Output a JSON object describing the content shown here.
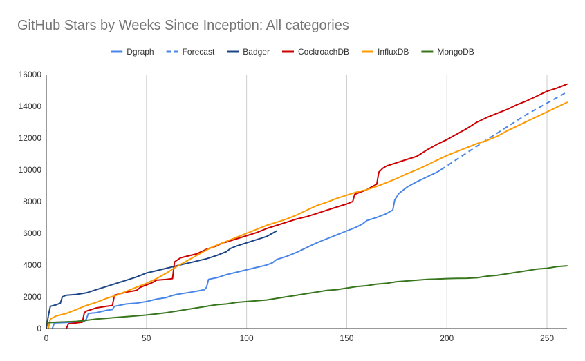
{
  "chart_data": {
    "type": "line",
    "title": "GitHub Stars by Weeks Since Inception: All categories",
    "xlabel": "",
    "ylabel": "",
    "xlim": [
      0,
      260
    ],
    "ylim": [
      0,
      16000
    ],
    "x_ticks": [
      0,
      50,
      100,
      150,
      200,
      250
    ],
    "y_ticks": [
      0,
      2000,
      4000,
      6000,
      8000,
      10000,
      12000,
      14000,
      16000
    ],
    "grid": "vertical",
    "legend_position": "top",
    "series": [
      {
        "name": "Dgraph",
        "color": "#4a86e8",
        "dashed": false,
        "points": [
          [
            3,
            0
          ],
          [
            4,
            350
          ],
          [
            10,
            380
          ],
          [
            15,
            420
          ],
          [
            19,
            450
          ],
          [
            20,
            600
          ],
          [
            21,
            950
          ],
          [
            25,
            1000
          ],
          [
            30,
            1150
          ],
          [
            33,
            1200
          ],
          [
            34,
            1400
          ],
          [
            40,
            1550
          ],
          [
            45,
            1600
          ],
          [
            50,
            1700
          ],
          [
            55,
            1850
          ],
          [
            60,
            1950
          ],
          [
            62,
            2050
          ],
          [
            65,
            2150
          ],
          [
            70,
            2250
          ],
          [
            75,
            2350
          ],
          [
            79,
            2450
          ],
          [
            80,
            2600
          ],
          [
            81,
            3100
          ],
          [
            85,
            3200
          ],
          [
            90,
            3400
          ],
          [
            95,
            3550
          ],
          [
            100,
            3700
          ],
          [
            105,
            3850
          ],
          [
            110,
            4000
          ],
          [
            113,
            4150
          ],
          [
            115,
            4350
          ],
          [
            120,
            4550
          ],
          [
            125,
            4800
          ],
          [
            130,
            5100
          ],
          [
            135,
            5400
          ],
          [
            140,
            5650
          ],
          [
            145,
            5900
          ],
          [
            150,
            6150
          ],
          [
            155,
            6400
          ],
          [
            158,
            6600
          ],
          [
            160,
            6800
          ],
          [
            165,
            7000
          ],
          [
            170,
            7250
          ],
          [
            172,
            7400
          ],
          [
            173,
            7450
          ],
          [
            174,
            8100
          ],
          [
            176,
            8500
          ],
          [
            180,
            8900
          ],
          [
            185,
            9250
          ],
          [
            190,
            9550
          ],
          [
            195,
            9850
          ],
          [
            197,
            10000
          ]
        ]
      },
      {
        "name": "Forecast",
        "color": "#4a86e8",
        "dashed": true,
        "points": [
          [
            197,
            10000
          ],
          [
            220,
            11900
          ],
          [
            240,
            13500
          ],
          [
            260,
            14900
          ]
        ]
      },
      {
        "name": "Badger",
        "color": "#1c4587",
        "dashed": false,
        "points": [
          [
            0,
            0
          ],
          [
            1,
            800
          ],
          [
            2,
            1400
          ],
          [
            5,
            1500
          ],
          [
            7,
            1600
          ],
          [
            8,
            2000
          ],
          [
            10,
            2100
          ],
          [
            15,
            2150
          ],
          [
            20,
            2250
          ],
          [
            25,
            2450
          ],
          [
            30,
            2650
          ],
          [
            35,
            2850
          ],
          [
            40,
            3050
          ],
          [
            45,
            3250
          ],
          [
            48,
            3400
          ],
          [
            50,
            3500
          ],
          [
            55,
            3650
          ],
          [
            60,
            3800
          ],
          [
            65,
            3950
          ],
          [
            70,
            4100
          ],
          [
            75,
            4250
          ],
          [
            80,
            4400
          ],
          [
            85,
            4600
          ],
          [
            90,
            4850
          ],
          [
            92,
            5050
          ],
          [
            95,
            5200
          ],
          [
            100,
            5400
          ],
          [
            105,
            5600
          ],
          [
            110,
            5800
          ],
          [
            115,
            6150
          ]
        ]
      },
      {
        "name": "CockroachDB",
        "color": "#cc0000",
        "dashed": false,
        "points": [
          [
            10,
            0
          ],
          [
            11,
            300
          ],
          [
            15,
            350
          ],
          [
            18,
            400
          ],
          [
            19,
            1000
          ],
          [
            20,
            1100
          ],
          [
            25,
            1300
          ],
          [
            30,
            1400
          ],
          [
            33,
            1450
          ],
          [
            34,
            2100
          ],
          [
            40,
            2300
          ],
          [
            45,
            2400
          ],
          [
            47,
            2600
          ],
          [
            50,
            2750
          ],
          [
            53,
            2900
          ],
          [
            55,
            3050
          ],
          [
            60,
            3100
          ],
          [
            63,
            3150
          ],
          [
            64,
            4200
          ],
          [
            67,
            4450
          ],
          [
            70,
            4550
          ],
          [
            75,
            4700
          ],
          [
            80,
            5000
          ],
          [
            85,
            5200
          ],
          [
            88,
            5400
          ],
          [
            90,
            5450
          ],
          [
            95,
            5650
          ],
          [
            100,
            5850
          ],
          [
            105,
            6050
          ],
          [
            108,
            6200
          ],
          [
            110,
            6300
          ],
          [
            115,
            6500
          ],
          [
            120,
            6700
          ],
          [
            125,
            6900
          ],
          [
            130,
            7050
          ],
          [
            135,
            7250
          ],
          [
            140,
            7450
          ],
          [
            145,
            7650
          ],
          [
            150,
            7850
          ],
          [
            153,
            8000
          ],
          [
            154,
            8450
          ],
          [
            160,
            8750
          ],
          [
            165,
            9100
          ],
          [
            166,
            9850
          ],
          [
            168,
            10100
          ],
          [
            170,
            10250
          ],
          [
            175,
            10450
          ],
          [
            180,
            10650
          ],
          [
            185,
            10850
          ],
          [
            190,
            11250
          ],
          [
            195,
            11600
          ],
          [
            200,
            11900
          ],
          [
            205,
            12250
          ],
          [
            210,
            12600
          ],
          [
            215,
            13000
          ],
          [
            220,
            13300
          ],
          [
            225,
            13550
          ],
          [
            230,
            13800
          ],
          [
            235,
            14100
          ],
          [
            240,
            14350
          ],
          [
            245,
            14650
          ],
          [
            250,
            14950
          ],
          [
            255,
            15150
          ],
          [
            260,
            15400
          ]
        ]
      },
      {
        "name": "InfluxDB",
        "color": "#ff9900",
        "dashed": false,
        "points": [
          [
            1,
            0
          ],
          [
            2,
            600
          ],
          [
            5,
            800
          ],
          [
            10,
            950
          ],
          [
            15,
            1200
          ],
          [
            20,
            1450
          ],
          [
            25,
            1650
          ],
          [
            30,
            1900
          ],
          [
            35,
            2100
          ],
          [
            40,
            2350
          ],
          [
            45,
            2600
          ],
          [
            50,
            2850
          ],
          [
            55,
            3150
          ],
          [
            60,
            3500
          ],
          [
            65,
            3900
          ],
          [
            70,
            4250
          ],
          [
            75,
            4600
          ],
          [
            80,
            4950
          ],
          [
            85,
            5250
          ],
          [
            90,
            5500
          ],
          [
            95,
            5750
          ],
          [
            100,
            6000
          ],
          [
            105,
            6250
          ],
          [
            110,
            6500
          ],
          [
            115,
            6700
          ],
          [
            120,
            6900
          ],
          [
            125,
            7150
          ],
          [
            130,
            7450
          ],
          [
            135,
            7750
          ],
          [
            140,
            7950
          ],
          [
            145,
            8200
          ],
          [
            150,
            8400
          ],
          [
            155,
            8600
          ],
          [
            160,
            8750
          ],
          [
            165,
            8950
          ],
          [
            170,
            9200
          ],
          [
            175,
            9450
          ],
          [
            180,
            9750
          ],
          [
            185,
            10000
          ],
          [
            190,
            10300
          ],
          [
            195,
            10600
          ],
          [
            200,
            10900
          ],
          [
            205,
            11150
          ],
          [
            210,
            11400
          ],
          [
            215,
            11650
          ],
          [
            220,
            11850
          ],
          [
            225,
            12100
          ],
          [
            230,
            12450
          ],
          [
            235,
            12750
          ],
          [
            240,
            13050
          ],
          [
            245,
            13350
          ],
          [
            250,
            13650
          ],
          [
            255,
            13950
          ],
          [
            260,
            14250
          ]
        ]
      },
      {
        "name": "MongoDB",
        "color": "#38761d",
        "dashed": false,
        "points": [
          [
            0,
            350
          ],
          [
            5,
            400
          ],
          [
            10,
            420
          ],
          [
            15,
            450
          ],
          [
            20,
            520
          ],
          [
            25,
            600
          ],
          [
            30,
            650
          ],
          [
            35,
            700
          ],
          [
            40,
            750
          ],
          [
            45,
            800
          ],
          [
            50,
            850
          ],
          [
            55,
            920
          ],
          [
            60,
            1000
          ],
          [
            65,
            1100
          ],
          [
            70,
            1200
          ],
          [
            75,
            1300
          ],
          [
            80,
            1400
          ],
          [
            85,
            1500
          ],
          [
            90,
            1550
          ],
          [
            95,
            1650
          ],
          [
            100,
            1700
          ],
          [
            105,
            1750
          ],
          [
            110,
            1800
          ],
          [
            115,
            1900
          ],
          [
            120,
            2000
          ],
          [
            125,
            2100
          ],
          [
            130,
            2200
          ],
          [
            135,
            2300
          ],
          [
            140,
            2400
          ],
          [
            145,
            2450
          ],
          [
            150,
            2550
          ],
          [
            155,
            2650
          ],
          [
            160,
            2700
          ],
          [
            165,
            2800
          ],
          [
            170,
            2850
          ],
          [
            175,
            2950
          ],
          [
            180,
            3000
          ],
          [
            185,
            3050
          ],
          [
            190,
            3100
          ],
          [
            195,
            3120
          ],
          [
            200,
            3150
          ],
          [
            205,
            3160
          ],
          [
            210,
            3170
          ],
          [
            215,
            3200
          ],
          [
            220,
            3300
          ],
          [
            225,
            3350
          ],
          [
            230,
            3450
          ],
          [
            235,
            3550
          ],
          [
            240,
            3650
          ],
          [
            245,
            3750
          ],
          [
            250,
            3800
          ],
          [
            255,
            3900
          ],
          [
            260,
            3950
          ]
        ]
      }
    ]
  }
}
